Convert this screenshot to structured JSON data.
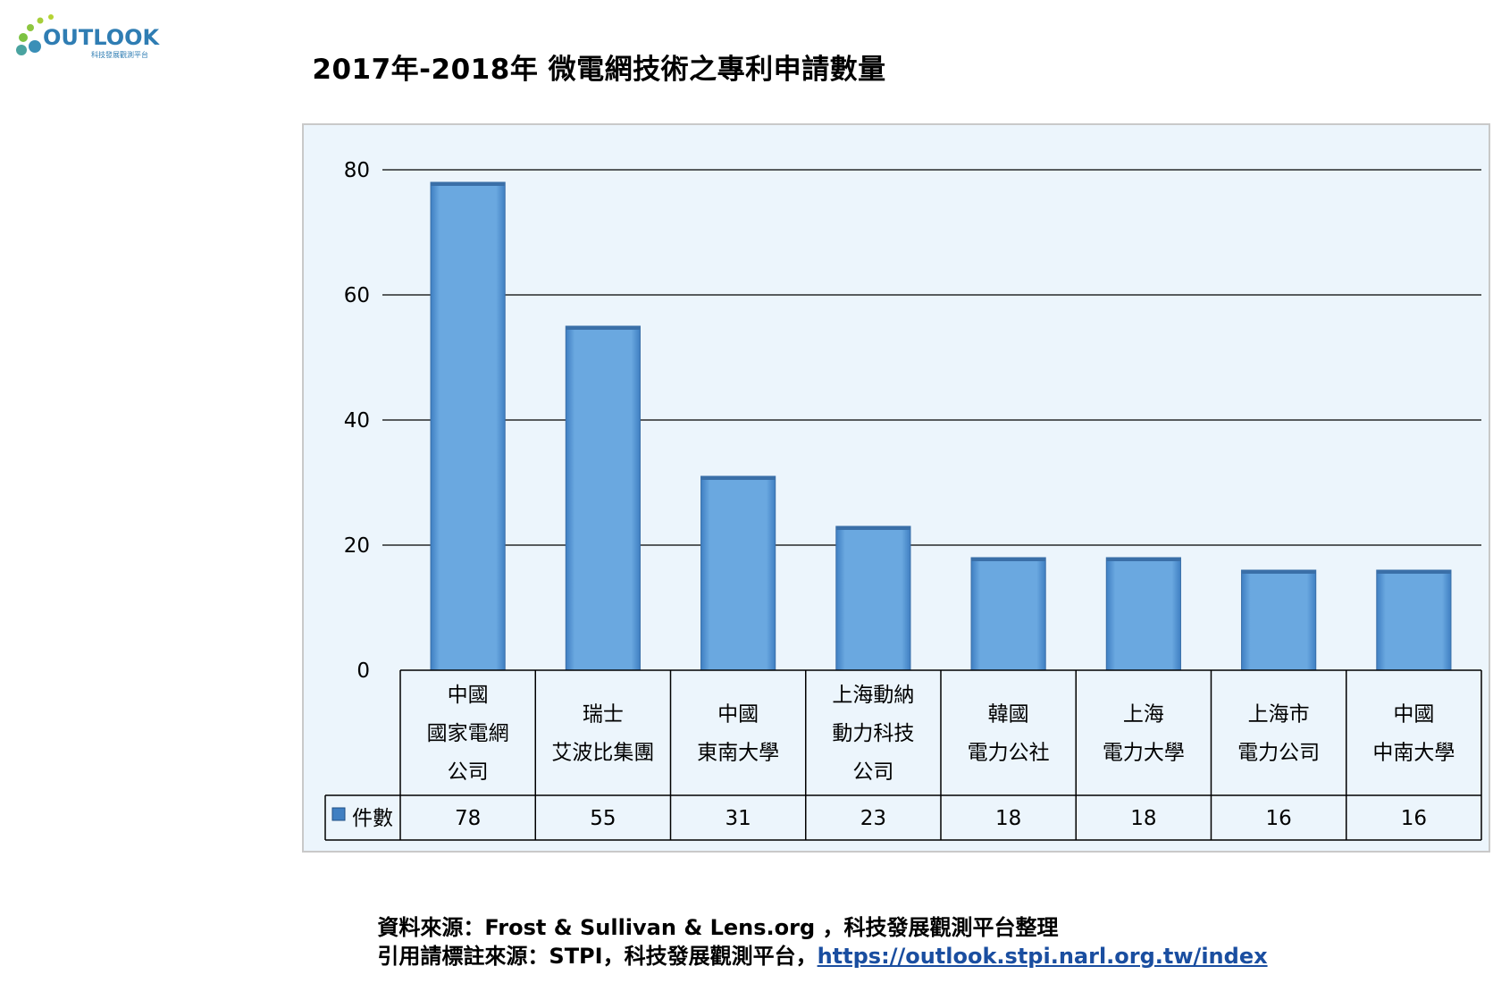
{
  "logo": {
    "text": "OUTLOOK",
    "subtitle": "科技發展觀測平台"
  },
  "source": {
    "line1": "資料來源：Frost & Sullivan & Lens.org ，科技發展觀測平台整理",
    "line2_prefix": "引用請標註來源：STPI，科技發展觀測平台，",
    "line2_link": "https://outlook.stpi.narl.org.tw/index"
  },
  "colors": {
    "bar": "#6aa8e0",
    "bar_edge": "#3d7bbf",
    "plot_bg": "#ecf5fc",
    "link": "#1a4ea0"
  },
  "chart_data": {
    "type": "bar",
    "title": "2017年-2018年 微電網技術之專利申請數量",
    "categories": [
      [
        "中國",
        "國家電網",
        "公司"
      ],
      [
        "瑞士",
        "艾波比集團"
      ],
      [
        "中國",
        "東南大學"
      ],
      [
        "上海動納",
        "動力科技",
        "公司"
      ],
      [
        "韓國",
        "電力公社"
      ],
      [
        "上海",
        "電力大學"
      ],
      [
        "上海市",
        "電力公司"
      ],
      [
        "中國",
        "中南大學"
      ]
    ],
    "series": [
      {
        "name": "件數",
        "values": [
          78,
          55,
          31,
          23,
          18,
          18,
          16,
          16
        ]
      }
    ],
    "ylim": [
      0,
      80
    ],
    "yticks": [
      0,
      20,
      40,
      60,
      80
    ],
    "grid": true,
    "legend": "data-table"
  }
}
